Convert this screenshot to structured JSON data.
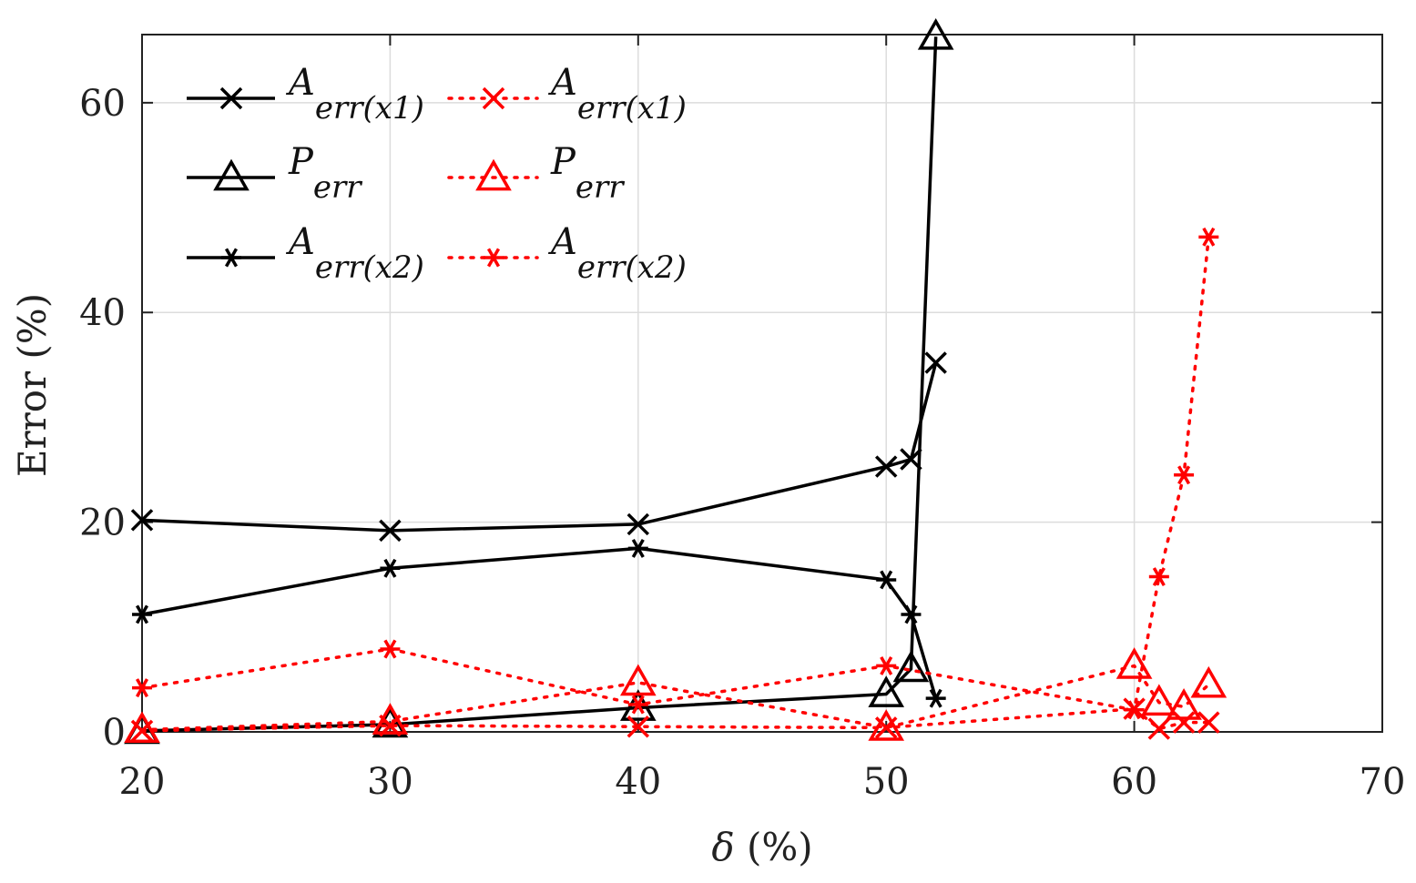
{
  "chart_data": {
    "type": "line",
    "title": "",
    "xlabel_symbol": "δ",
    "xlabel_unit": " (%)",
    "ylabel": "Error (%)",
    "xlim": [
      20,
      70
    ],
    "ylim": [
      0,
      66.5
    ],
    "xticks": [
      20,
      30,
      40,
      50,
      60,
      70
    ],
    "yticks": [
      0,
      20,
      40,
      60
    ],
    "grid": true,
    "legend_position": "top-left",
    "series": [
      {
        "name_main": "A",
        "name_sub": "err(x1)",
        "color": "#000000",
        "style": "solid",
        "marker": "x",
        "x": [
          20,
          30,
          40,
          50,
          51,
          52
        ],
        "y": [
          20.2,
          19.2,
          19.8,
          25.3,
          26.0,
          35.2
        ]
      },
      {
        "name_main": "P",
        "name_sub": "err",
        "color": "#000000",
        "style": "solid",
        "marker": "triangle",
        "x": [
          20,
          30,
          40,
          50,
          51,
          52
        ],
        "y": [
          0.1,
          0.7,
          2.3,
          3.6,
          6.0,
          66.3
        ]
      },
      {
        "name_main": "A",
        "name_sub": "err(x2)",
        "color": "#000000",
        "style": "solid",
        "marker": "asterisk",
        "x": [
          20,
          30,
          40,
          50,
          51,
          52
        ],
        "y": [
          11.2,
          15.6,
          17.5,
          14.5,
          11.2,
          3.2
        ]
      },
      {
        "name_main": "A",
        "name_sub": "err(x1)",
        "color": "#ff0000",
        "style": "dotted",
        "marker": "x",
        "x": [
          20,
          30,
          40,
          50,
          60,
          61,
          62,
          63
        ],
        "y": [
          0.1,
          0.6,
          0.5,
          0.4,
          2.2,
          0.3,
          0.9,
          0.9
        ]
      },
      {
        "name_main": "P",
        "name_sub": "err",
        "color": "#ff0000",
        "style": "dotted",
        "marker": "triangle",
        "x": [
          20,
          30,
          40,
          50,
          60,
          61,
          62,
          63
        ],
        "y": [
          0.2,
          1.0,
          4.7,
          0.4,
          6.3,
          2.8,
          2.4,
          4.5
        ]
      },
      {
        "name_main": "A",
        "name_sub": "err(x2)",
        "color": "#ff0000",
        "style": "dotted",
        "marker": "asterisk",
        "x": [
          20,
          30,
          40,
          50,
          60,
          61,
          62,
          63
        ],
        "y": [
          4.2,
          7.9,
          2.6,
          6.3,
          2.1,
          14.8,
          24.5,
          47.2
        ]
      }
    ]
  }
}
